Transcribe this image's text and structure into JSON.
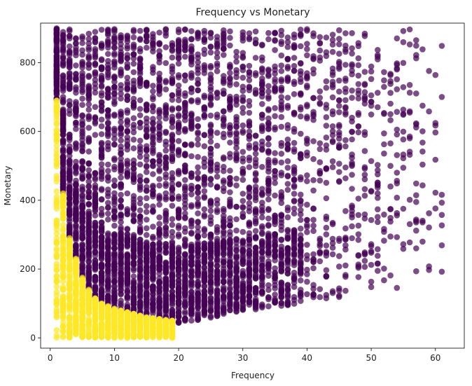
{
  "chart_data": {
    "type": "scatter",
    "title": "Frequency vs Monetary",
    "xlabel": "Frequency",
    "ylabel": "Monetary",
    "xlim": [
      -1.5,
      64.5
    ],
    "ylim": [
      -30,
      915
    ],
    "xticks": [
      0,
      10,
      20,
      30,
      40,
      50,
      60
    ],
    "yticks": [
      0,
      200,
      400,
      600,
      800
    ],
    "grid": false,
    "legend": "none",
    "point_alpha": 0.7,
    "series": [
      {
        "color": "#440154",
        "description_points": "Frequency 1-61, Monetary ~40-900; lower bound decreases with frequency then rises",
        "x_range": [
          1,
          61
        ],
        "y_range": [
          35,
          900
        ]
      },
      {
        "color": "#fde725",
        "x_range": [
          1,
          19
        ],
        "y_range": [
          0,
          700
        ],
        "upper_envelope": [
          [
            1,
            690
          ],
          [
            2,
            420
          ],
          [
            3,
            290
          ],
          [
            4,
            230
          ],
          [
            5,
            175
          ],
          [
            6,
            140
          ],
          [
            7,
            115
          ],
          [
            8,
            100
          ],
          [
            10,
            85
          ],
          [
            12,
            75
          ],
          [
            15,
            60
          ],
          [
            19,
            50
          ]
        ]
      }
    ]
  }
}
